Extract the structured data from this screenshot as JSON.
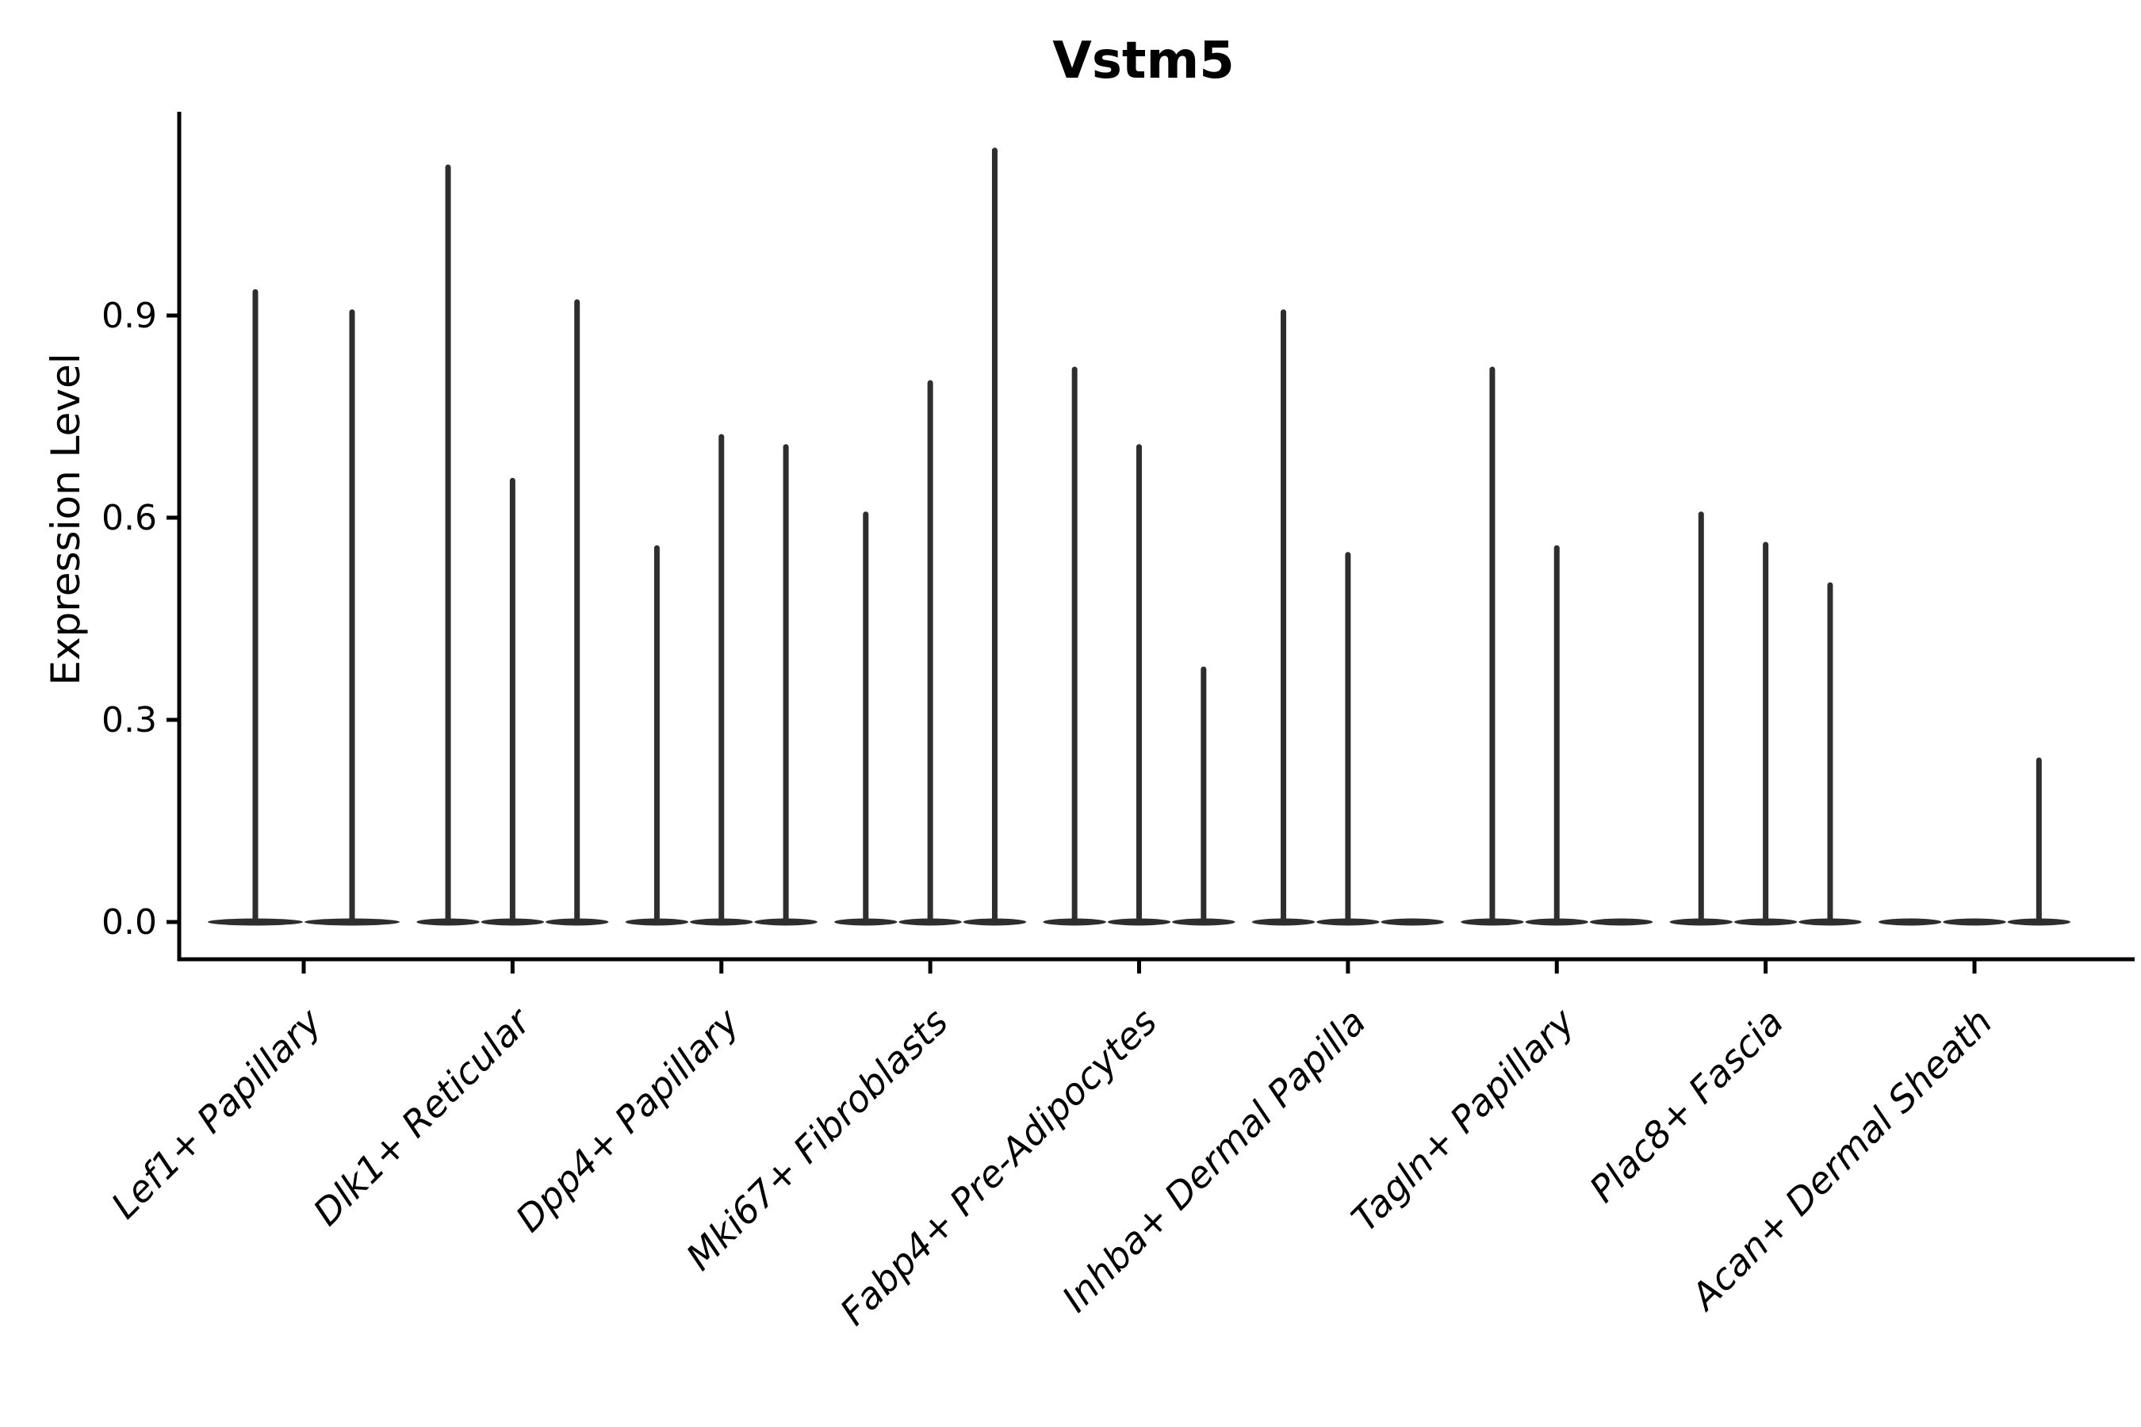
{
  "figure": {
    "title": "Vstm5",
    "ylabel": "Expression Level"
  },
  "chart_data": {
    "type": "violin",
    "title": "Vstm5",
    "xlabel": "",
    "ylabel": "Expression Level",
    "ylim": [
      0,
      1.2
    ],
    "grid": false,
    "legend_position": "none",
    "yticks": {
      "values": [
        0,
        0.3,
        0.6,
        0.9
      ],
      "labels": [
        "0.0",
        "0.3",
        "0.6",
        "0.9"
      ]
    },
    "categories": [
      "Lef1+ Papillary",
      "Dlk1+ Reticular",
      "Dpp4+ Papillary",
      "Mki67+ Fibroblasts",
      "Fabp4+ Pre-Adipocytes",
      "Inhba+ Dermal Papilla",
      "Tagln+ Papillary",
      "Plac8+ Fascia",
      "Acan+ Dermal Sheath"
    ],
    "groups": [
      {
        "category": "Lef1+ Papillary",
        "violin_max_values": [
          0.935,
          0.905
        ]
      },
      {
        "category": "Dlk1+ Reticular",
        "violin_max_values": [
          1.12,
          0.655,
          0.92
        ]
      },
      {
        "category": "Dpp4+ Papillary",
        "violin_max_values": [
          0.555,
          0.72,
          0.705
        ]
      },
      {
        "category": "Mki67+ Fibroblasts",
        "violin_max_values": [
          0.605,
          0.8,
          1.145
        ]
      },
      {
        "category": "Fabp4+ Pre-Adipocytes",
        "violin_max_values": [
          0.82,
          0.705,
          0.375
        ]
      },
      {
        "category": "Inhba+ Dermal Papilla",
        "violin_max_values": [
          0.905,
          0.545,
          0
        ]
      },
      {
        "category": "Tagln+ Papillary",
        "violin_max_values": [
          0.82,
          0.555,
          0
        ]
      },
      {
        "category": "Plac8+ Fascia",
        "violin_max_values": [
          0.605,
          0.56,
          0.5
        ]
      },
      {
        "category": "Acan+ Dermal Sheath",
        "violin_max_values": [
          0,
          0,
          0.24
        ]
      }
    ],
    "notes": "Each category shows 2-3 narrow split violins; distributions are concentrated at 0 (flat wide base) with a thin spike up to the max expression value.",
    "style": {
      "violin_color": "#2e2e2e",
      "axis_color": "#000000",
      "text_color": "#000000",
      "background": "#ffffff"
    }
  }
}
